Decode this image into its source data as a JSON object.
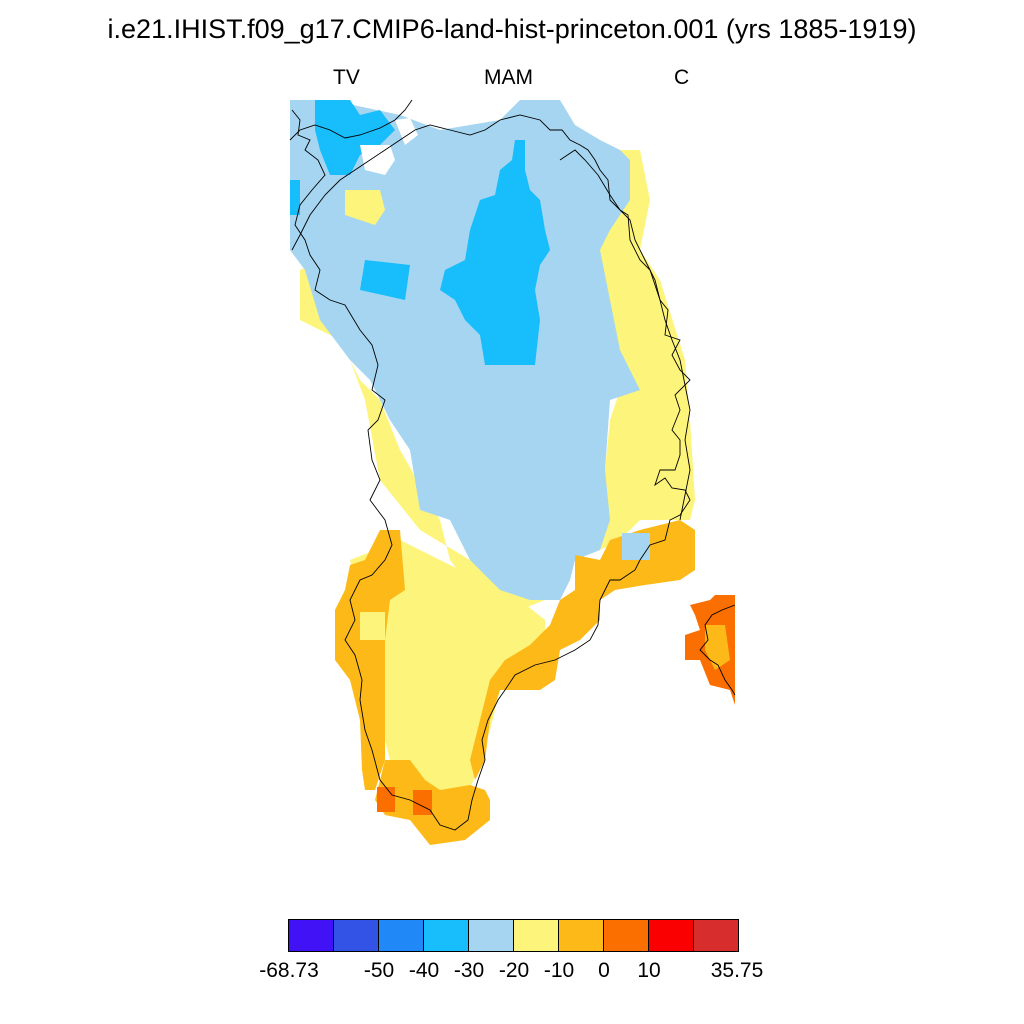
{
  "title": "i.e21.IHIST.f09_g17.CMIP6-land-hist-princeton.001 (yrs 1885-1919)",
  "subtitle_left": "TV",
  "subtitle_center": "MAM",
  "subtitle_right": "C",
  "colorbar": {
    "colors": [
      "#4212f7",
      "#3253e6",
      "#2189f7",
      "#18bdfb",
      "#a5d5f0",
      "#fdf47b",
      "#fcb917",
      "#fb6f00",
      "#fb0000",
      "#d72d2d"
    ],
    "labels": [
      "-68.73",
      "-50",
      "-40",
      "-30",
      "-20",
      "-10",
      "0",
      "10",
      "35.75"
    ]
  },
  "legend_colors": {
    "very_low": "#18bdfb",
    "low": "#a5d5f0",
    "mid": "#fdf47b",
    "high": "#fcb917",
    "higher": "#fb6f00"
  }
}
